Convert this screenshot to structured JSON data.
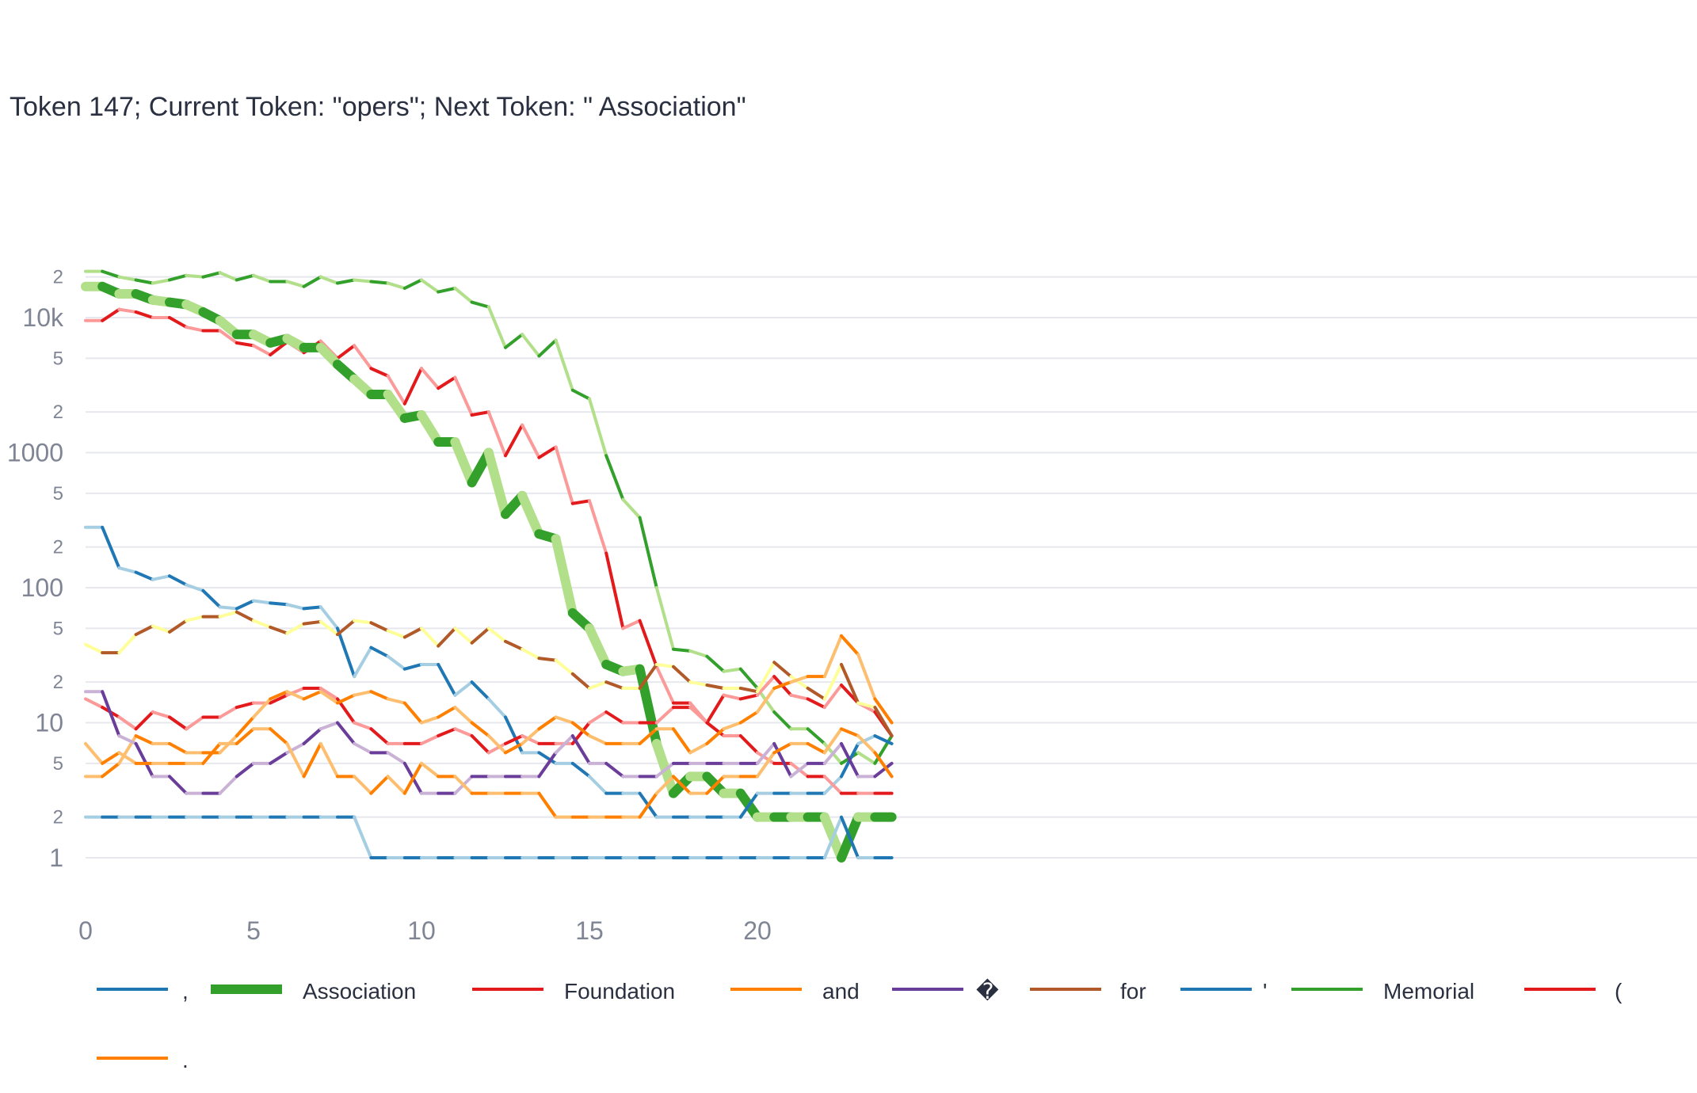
{
  "chart_data": {
    "type": "line",
    "title": "Token 147; Current Token: \"opers\"; Next Token: \" Association\"",
    "xlabel": "",
    "ylabel": "",
    "y_scale": "log",
    "xlim": [
      0,
      24
    ],
    "ylim": [
      0.55,
      34000
    ],
    "grid": true,
    "legend_position": "bottom",
    "x_ticks": [
      0,
      5,
      10,
      15,
      20
    ],
    "x_tick_labels": [
      "0",
      "5",
      "10",
      "15",
      "20"
    ],
    "y_major_ticks": [
      1,
      10,
      100,
      1000,
      10000
    ],
    "y_major_labels": [
      "1",
      "10",
      "100",
      "1000",
      "10k"
    ],
    "y_minor_ticks": [
      2,
      5,
      20,
      50,
      200,
      500,
      2000,
      5000,
      20000
    ],
    "y_minor_labels": [
      "2",
      "5",
      "2",
      "5",
      "2",
      "5",
      "2",
      "5",
      "2"
    ],
    "x": [
      0,
      0.5,
      1,
      1.5,
      2,
      2.5,
      3,
      3.5,
      4,
      4.5,
      5,
      5.5,
      6,
      6.5,
      7,
      7.5,
      8,
      8.5,
      9,
      9.5,
      10,
      10.5,
      11,
      11.5,
      12,
      12.5,
      13,
      13.5,
      14,
      14.5,
      15,
      15.5,
      16,
      16.5,
      17,
      17.5,
      18,
      18.5,
      19,
      19.5,
      20,
      20.5,
      21,
      21.5,
      22,
      22.5,
      23,
      23.5,
      24
    ],
    "series": [
      {
        "name": ",",
        "color": "#1f78b4",
        "alt_color": "#a6cee3",
        "width": 4,
        "values": [
          280,
          280,
          140,
          130,
          115,
          122,
          105,
          95,
          72,
          70,
          80,
          77,
          75,
          70,
          72,
          50,
          22,
          36,
          31,
          25,
          27,
          27,
          16,
          20,
          15,
          11,
          6,
          6,
          5,
          5,
          4,
          3,
          3,
          3,
          2,
          2,
          2,
          2,
          2,
          2,
          3,
          3,
          3,
          3,
          3,
          4,
          7,
          8,
          7
        ]
      },
      {
        "name": "Association",
        "color": "#33a02c",
        "alt_color": "#b2df8a",
        "width": 12,
        "values": [
          17000,
          17000,
          15000,
          15000,
          13500,
          13000,
          12500,
          11000,
          9500,
          7500,
          7500,
          6500,
          7000,
          6000,
          6000,
          4500,
          3500,
          2700,
          2700,
          1800,
          1900,
          1200,
          1200,
          600,
          1000,
          350,
          480,
          250,
          230,
          65,
          50,
          27,
          24,
          25,
          7,
          3,
          4,
          4,
          3,
          3,
          2,
          2,
          2,
          2,
          2,
          1,
          2,
          2,
          2
        ]
      },
      {
        "name": "Foundation",
        "color": "#e31a1c",
        "alt_color": "#fb9a99",
        "width": 4,
        "values": [
          9500,
          9500,
          11500,
          11000,
          10000,
          10000,
          8500,
          8000,
          8000,
          6500,
          6200,
          5300,
          6600,
          5500,
          6700,
          5000,
          6200,
          4200,
          3700,
          2300,
          4200,
          3000,
          3600,
          1900,
          2000,
          950,
          1600,
          920,
          1100,
          420,
          440,
          180,
          50,
          57,
          26,
          14,
          14,
          10,
          16,
          15,
          16,
          22,
          16,
          15,
          13,
          19,
          14,
          12,
          8
        ]
      },
      {
        "name": "and",
        "color": "#ff7f00",
        "alt_color": "#fdbf6f",
        "width": 4,
        "values": [
          4,
          4,
          5,
          8,
          7,
          7,
          6,
          6,
          6,
          8,
          11,
          15,
          17,
          15,
          17,
          14,
          16,
          17,
          15,
          14,
          10,
          11,
          13,
          10,
          8,
          6,
          7,
          9,
          11,
          10,
          8,
          7,
          7,
          7,
          9,
          9,
          6,
          7,
          9,
          10,
          12,
          18,
          20,
          22,
          22,
          44,
          32,
          15,
          10
        ]
      },
      {
        "name": "�",
        "color": "#6a3d9a",
        "alt_color": "#cab2d6",
        "width": 4,
        "values": [
          17,
          17,
          8,
          7,
          4,
          4,
          3,
          3,
          3,
          4,
          5,
          5,
          6,
          7,
          9,
          10,
          7,
          6,
          6,
          5,
          3,
          3,
          3,
          4,
          4,
          4,
          4,
          4,
          6,
          8,
          5,
          5,
          4,
          4,
          4,
          5,
          5,
          5,
          5,
          5,
          5,
          7,
          4,
          5,
          5,
          7,
          4,
          4,
          5
        ]
      },
      {
        "name": "for",
        "color": "#b15928",
        "alt_color": "#ffff99",
        "width": 4,
        "values": [
          38,
          33,
          33,
          45,
          52,
          47,
          57,
          61,
          61,
          66,
          57,
          51,
          46,
          54,
          56,
          45,
          57,
          55,
          48,
          43,
          50,
          37,
          50,
          39,
          50,
          40,
          35,
          30,
          29,
          23,
          18,
          20,
          18,
          18,
          27,
          26,
          20,
          19,
          18,
          18,
          17,
          28,
          22,
          18,
          15,
          27,
          14,
          13,
          8
        ]
      },
      {
        "name": "'",
        "color": "#1f78b4",
        "alt_color": "#a6cee3",
        "width": 4,
        "values": [
          2,
          2,
          2,
          2,
          2,
          2,
          2,
          2,
          2,
          2,
          2,
          2,
          2,
          2,
          2,
          2,
          2,
          1,
          1,
          1,
          1,
          1,
          1,
          1,
          1,
          1,
          1,
          1,
          1,
          1,
          1,
          1,
          1,
          1,
          1,
          1,
          1,
          1,
          1,
          1,
          1,
          1,
          1,
          1,
          1,
          2,
          1,
          1,
          1
        ]
      },
      {
        "name": "Memorial",
        "color": "#33a02c",
        "alt_color": "#b2df8a",
        "width": 4,
        "values": [
          22000,
          22000,
          20000,
          19000,
          18000,
          19000,
          20500,
          20000,
          21500,
          19000,
          20500,
          18500,
          18500,
          17000,
          20000,
          18000,
          19000,
          18500,
          18000,
          16500,
          19000,
          15500,
          16500,
          13000,
          12000,
          6000,
          7500,
          5200,
          6800,
          2900,
          2500,
          950,
          450,
          330,
          100,
          35,
          34,
          31,
          24,
          25,
          18,
          12,
          9,
          9,
          7,
          5,
          6,
          5,
          8
        ]
      },
      {
        "name": "(",
        "color": "#e31a1c",
        "alt_color": "#fb9a99",
        "width": 4,
        "values": [
          15,
          13,
          11,
          9,
          12,
          11,
          9,
          11,
          11,
          13,
          14,
          14,
          16,
          18,
          18,
          15,
          10,
          9,
          7,
          7,
          7,
          8,
          9,
          8,
          6,
          7,
          8,
          7,
          7,
          7,
          10,
          12,
          10,
          10,
          10,
          13,
          13,
          10,
          8,
          8,
          6,
          5,
          5,
          4,
          4,
          3,
          3,
          3,
          3
        ]
      },
      {
        "name": ".",
        "color": "#ff7f00",
        "alt_color": "#fdbf6f",
        "width": 4,
        "values": [
          7,
          5,
          6,
          5,
          5,
          5,
          5,
          5,
          7,
          7,
          9,
          9,
          7,
          4,
          7,
          4,
          4,
          3,
          4,
          3,
          5,
          4,
          4,
          3,
          3,
          3,
          3,
          3,
          2,
          2,
          2,
          2,
          2,
          2,
          3,
          4,
          3,
          3,
          4,
          4,
          4,
          6,
          7,
          7,
          6,
          9,
          8,
          6,
          4
        ]
      }
    ]
  }
}
